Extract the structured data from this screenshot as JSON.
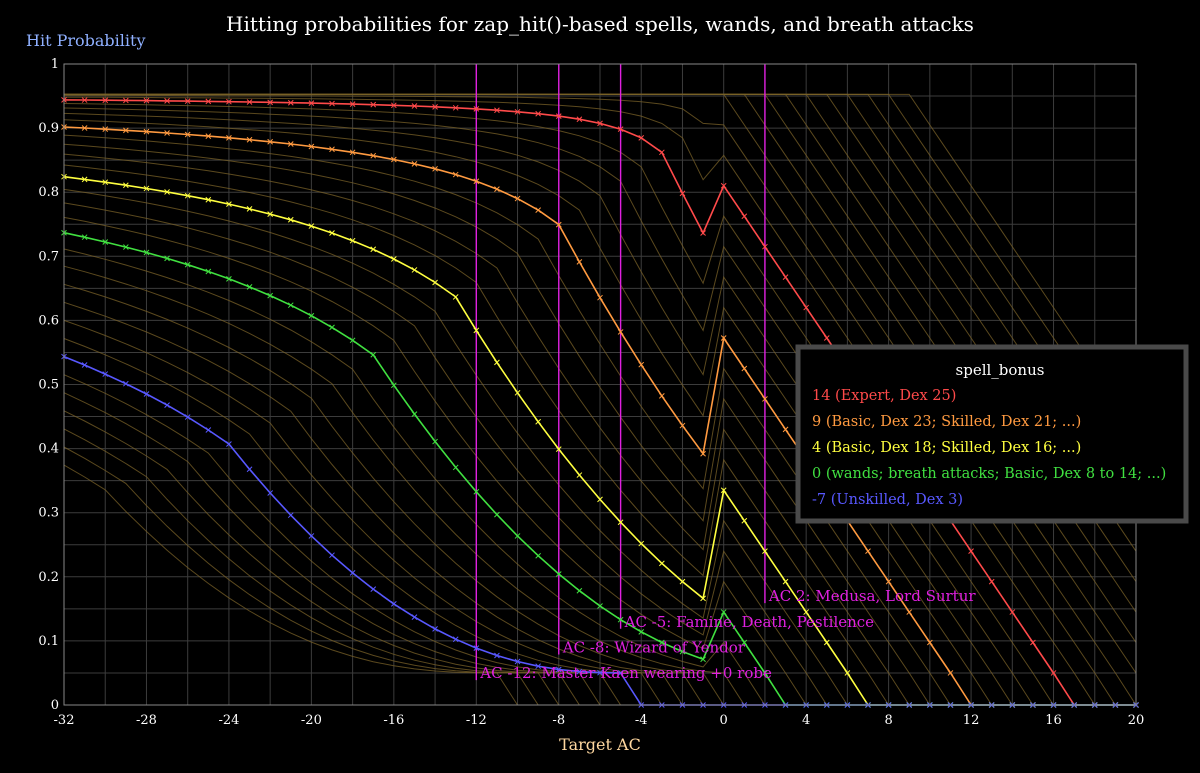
{
  "chart_data": {
    "type": "line",
    "title": "Hitting probabilities for zap_hit()-based spells, wands, and breath attacks",
    "xlabel": "Target AC",
    "ylabel": "Hit Probability",
    "xlim": [
      -32,
      20
    ],
    "ylim": [
      0,
      1
    ],
    "x_ticks": [
      "-32",
      "-28",
      "-24",
      "-20",
      "-16",
      "-12",
      "-8",
      "-4",
      "0",
      "4",
      "8",
      "12",
      "16",
      "20"
    ],
    "y_ticks": [
      "0",
      "0.1",
      "0.2",
      "0.3",
      "0.4",
      "0.5",
      "0.6",
      "0.7",
      "0.8",
      "0.9",
      "1"
    ],
    "grid": true,
    "background_color": "#000000",
    "grid_color": "#3c3c3c",
    "background_curve_color": "#7a6228",
    "background_curves_offset_range": [
      -13,
      26
    ],
    "legend": {
      "title": "spell_bonus",
      "placement": "right",
      "entries": [
        {
          "label": "14 (Expert, Dex 25)",
          "color": "#ff4a4a"
        },
        {
          "label": "9 (Basic, Dex 23; Skilled, Dex 21; ...)",
          "color": "#ff9a40"
        },
        {
          "label": "4 (Basic, Dex 18; Skilled, Dex 16; ...)",
          "color": "#ffff40"
        },
        {
          "label": "0 (wands; breath attacks; Basic, Dex 8 to 14; ...)",
          "color": "#40e040"
        },
        {
          "label": "-7 (Unskilled, Dex 3)",
          "color": "#5858ff"
        }
      ]
    },
    "series": [
      {
        "bonus": 14,
        "color": "#ff4a4a"
      },
      {
        "bonus": 9,
        "color": "#ff9a40"
      },
      {
        "bonus": 4,
        "color": "#ffff40"
      },
      {
        "bonus": 0,
        "color": "#40e040"
      },
      {
        "bonus": -7,
        "color": "#5858ff"
      }
    ],
    "annotation_color": "#e020e0",
    "annotations": [
      {
        "x": 2,
        "text": "AC 2: Medusa, Lord Surtur",
        "label_y": 0.162
      },
      {
        "x": -5,
        "text": "AC -5: Famine, Death, Pestilence",
        "label_y": 0.122
      },
      {
        "x": -8,
        "text": "AC -8: Wizard of Yendor",
        "label_y": 0.082
      },
      {
        "x": -12,
        "text": "AC -12: Master Kaen wearing +0 robe",
        "label_y": 0.042
      }
    ]
  }
}
